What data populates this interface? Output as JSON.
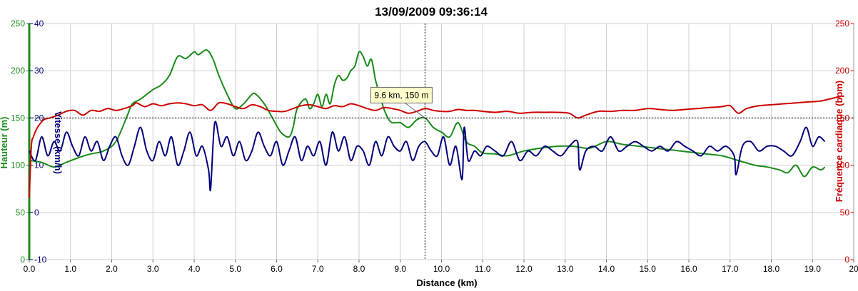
{
  "chart_data": {
    "type": "line",
    "title": "13/09/2009 09:36:14",
    "xlabel": "Distance (km)",
    "xlim": [
      0,
      20
    ],
    "x_ticks": [
      "0.0",
      "1.0",
      "2.0",
      "3.0",
      "4.0",
      "5.0",
      "6.0",
      "7.0",
      "8.0",
      "9.0",
      "10.0",
      "11.0",
      "12.0",
      "13.0",
      "14.0",
      "15.0",
      "16.0",
      "17.0",
      "18.0",
      "19.0",
      "20"
    ],
    "grid": true,
    "axes": {
      "hauteur": {
        "label": "Hauteur (m)",
        "range": [
          0,
          250
        ],
        "ticks": [
          "0",
          "50",
          "100",
          "150",
          "200",
          "250"
        ],
        "color": "#1a8a1a",
        "side": "left-outer"
      },
      "vitesse": {
        "label": "Vitesse (km/h)",
        "range": [
          -10,
          40
        ],
        "ticks": [
          "-10",
          "0",
          "10",
          "20",
          "30",
          "40"
        ],
        "color": "#00007a",
        "side": "left-inner"
      },
      "frequence": {
        "label": "Fréquence cardiaque (bpm)",
        "range": [
          0,
          250
        ],
        "ticks": [
          "0",
          "50",
          "100",
          "150",
          "200",
          "250"
        ],
        "color": "#cc0000",
        "side": "right"
      }
    },
    "crosshair": {
      "x": 9.6,
      "y": 150,
      "label": "9.6 km, 150 m"
    },
    "series": [
      {
        "key": "hauteur",
        "axis": "hauteur",
        "color": "#1a8a1a",
        "x": [
          0,
          0.3,
          0.6,
          0.9,
          1.2,
          1.5,
          1.8,
          2.1,
          2.4,
          2.5,
          2.7,
          3.0,
          3.2,
          3.4,
          3.6,
          3.8,
          4.0,
          4.1,
          4.3,
          4.45,
          4.6,
          4.8,
          5.0,
          5.2,
          5.4,
          5.5,
          5.7,
          5.9,
          6.1,
          6.3,
          6.4,
          6.5,
          6.7,
          6.8,
          6.9,
          7.0,
          7.1,
          7.2,
          7.3,
          7.4,
          7.5,
          7.6,
          7.7,
          7.8,
          7.9,
          8.0,
          8.1,
          8.2,
          8.3,
          8.4,
          8.5,
          8.6,
          8.7,
          8.8,
          9.0,
          9.2,
          9.4,
          9.6,
          9.8,
          10.0,
          10.2,
          10.4,
          10.6,
          10.8,
          11.0,
          11.3,
          11.6,
          12.0,
          12.4,
          12.8,
          13.2,
          13.6,
          14.0,
          14.4,
          14.8,
          15.2,
          15.6,
          16.0,
          16.4,
          16.8,
          17.2,
          17.6,
          17.9,
          18.2,
          18.4,
          18.6,
          18.8,
          19.0,
          19.2,
          19.3
        ],
        "values": [
          105,
          103,
          98,
          103,
          108,
          112,
          115,
          125,
          155,
          165,
          170,
          180,
          185,
          195,
          215,
          213,
          220,
          217,
          222,
          213,
          195,
          175,
          160,
          165,
          175,
          175,
          165,
          150,
          135,
          130,
          140,
          160,
          170,
          160,
          165,
          175,
          162,
          175,
          165,
          185,
          195,
          190,
          192,
          200,
          205,
          220,
          215,
          205,
          212,
          190,
          175,
          160,
          150,
          145,
          145,
          140,
          148,
          150,
          140,
          135,
          130,
          145,
          125,
          120,
          113,
          112,
          110,
          115,
          118,
          120,
          120,
          118,
          125,
          122,
          120,
          118,
          116,
          114,
          112,
          110,
          105,
          100,
          98,
          95,
          92,
          100,
          88,
          98,
          95,
          98
        ]
      },
      {
        "key": "vitesse",
        "axis": "vitesse",
        "color": "#00007a",
        "x": [
          0,
          0.15,
          0.3,
          0.45,
          0.6,
          0.75,
          0.9,
          1.05,
          1.2,
          1.35,
          1.5,
          1.65,
          1.8,
          1.95,
          2.1,
          2.25,
          2.4,
          2.55,
          2.7,
          2.85,
          3.0,
          3.15,
          3.3,
          3.45,
          3.6,
          3.75,
          3.9,
          4.05,
          4.2,
          4.35,
          4.4,
          4.5,
          4.65,
          4.8,
          4.95,
          5.1,
          5.25,
          5.4,
          5.55,
          5.7,
          5.85,
          6.0,
          6.15,
          6.3,
          6.45,
          6.6,
          6.75,
          6.9,
          7.05,
          7.2,
          7.35,
          7.5,
          7.65,
          7.8,
          7.95,
          8.1,
          8.25,
          8.4,
          8.55,
          8.7,
          8.85,
          9.0,
          9.15,
          9.3,
          9.45,
          9.6,
          9.75,
          9.9,
          10.05,
          10.2,
          10.35,
          10.5,
          10.55,
          10.65,
          10.8,
          10.95,
          11.1,
          11.3,
          11.5,
          11.7,
          11.9,
          12.1,
          12.3,
          12.5,
          12.7,
          12.9,
          13.1,
          13.3,
          13.35,
          13.5,
          13.7,
          13.9,
          14.1,
          14.3,
          14.5,
          14.7,
          14.9,
          15.1,
          15.3,
          15.5,
          15.7,
          15.9,
          16.1,
          16.3,
          16.5,
          16.7,
          16.9,
          17.1,
          17.15,
          17.3,
          17.5,
          17.7,
          17.9,
          18.1,
          18.3,
          18.5,
          18.7,
          18.85,
          19.0,
          19.15,
          19.3
        ],
        "values": [
          13,
          11,
          16,
          12,
          15,
          13,
          17,
          14,
          12,
          16,
          13,
          15,
          11,
          14,
          16,
          12,
          10,
          14,
          18,
          13,
          11,
          15,
          12,
          16,
          10,
          13,
          17,
          12,
          14,
          9,
          5,
          19,
          14,
          16,
          12,
          15,
          11,
          13,
          17,
          14,
          12,
          15,
          10,
          13,
          16,
          11,
          14,
          12,
          15,
          10,
          17,
          13,
          16,
          11,
          14,
          13,
          10,
          15,
          12,
          16,
          14,
          13,
          15,
          11,
          14,
          15,
          13,
          12,
          16,
          10,
          14,
          7,
          18,
          11,
          13,
          12,
          14,
          13,
          12,
          15,
          11,
          13,
          12,
          14,
          13,
          12,
          14,
          15,
          9,
          13,
          14,
          13,
          16,
          13,
          14,
          15,
          14,
          13,
          14,
          13,
          15,
          14,
          13,
          12,
          14,
          13,
          14,
          12,
          8,
          14,
          15,
          13,
          14,
          14,
          13,
          12,
          15,
          18,
          14,
          16,
          15
        ]
      },
      {
        "key": "frequence",
        "axis": "frequence",
        "color": "#cc0000",
        "x": [
          0,
          0.05,
          0.1,
          0.2,
          0.35,
          0.5,
          0.7,
          0.9,
          1.1,
          1.3,
          1.5,
          1.7,
          1.9,
          2.1,
          2.3,
          2.5,
          2.6,
          2.8,
          3.0,
          3.2,
          3.4,
          3.6,
          3.8,
          4.0,
          4.2,
          4.4,
          4.6,
          4.8,
          5.0,
          5.2,
          5.4,
          5.6,
          5.8,
          6.0,
          6.2,
          6.4,
          6.6,
          6.8,
          7.0,
          7.2,
          7.4,
          7.6,
          7.8,
          8.0,
          8.2,
          8.4,
          8.6,
          8.8,
          9.0,
          9.2,
          9.4,
          9.6,
          9.8,
          10.0,
          10.2,
          10.4,
          10.6,
          10.8,
          11.0,
          11.3,
          11.6,
          11.9,
          12.2,
          12.5,
          12.8,
          13.1,
          13.3,
          13.5,
          13.8,
          14.1,
          14.4,
          14.7,
          15.0,
          15.3,
          15.6,
          15.9,
          16.2,
          16.5,
          16.8,
          17.0,
          17.2,
          17.4,
          17.7,
          18.0,
          18.3,
          18.6,
          18.9,
          19.2,
          19.5,
          19.7
        ],
        "values": [
          65,
          120,
          130,
          140,
          148,
          150,
          153,
          157,
          158,
          153,
          158,
          157,
          160,
          158,
          160,
          163,
          166,
          162,
          165,
          163,
          165,
          166,
          165,
          163,
          164,
          158,
          166,
          165,
          162,
          160,
          164,
          162,
          158,
          157,
          157,
          160,
          163,
          164,
          162,
          160,
          163,
          162,
          165,
          163,
          160,
          158,
          161,
          160,
          158,
          155,
          157,
          160,
          158,
          157,
          157,
          159,
          158,
          158,
          157,
          156,
          157,
          155,
          156,
          156,
          156,
          155,
          150,
          153,
          157,
          157,
          158,
          158,
          160,
          159,
          158,
          159,
          160,
          161,
          162,
          163,
          155,
          160,
          163,
          164,
          165,
          166,
          167,
          168,
          171,
          173
        ]
      }
    ]
  }
}
